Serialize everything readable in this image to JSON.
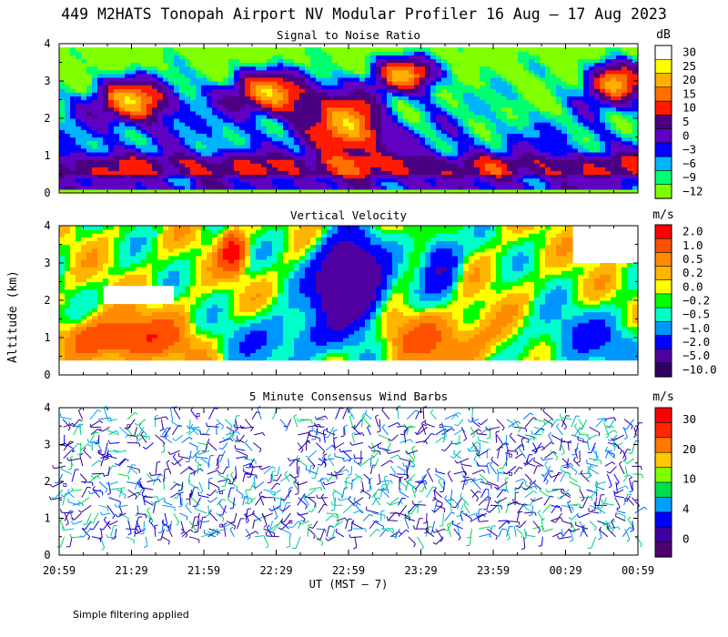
{
  "title": "449 M2HATS Tonopah Airport NV Modular Profiler 16 Aug – 17 Aug 2023",
  "y_axis_label": "Altitude (km)",
  "x_axis_label": "UT  (MST – 7)",
  "footnote": "Simple filtering applied",
  "x_ticks": [
    "20:59",
    "21:29",
    "21:59",
    "22:29",
    "22:59",
    "23:29",
    "23:59",
    "00:29",
    "00:59"
  ],
  "y_ticks": [
    "0",
    "1",
    "2",
    "3",
    "4"
  ],
  "chart_data": [
    {
      "type": "heatmap",
      "title": "Signal to Noise Ratio",
      "unit": "dB",
      "ylim": [
        0,
        4
      ],
      "legend_labels": [
        "30",
        "25",
        "20",
        "15",
        "10",
        "5",
        "0",
        "−3",
        "−6",
        "−9",
        "−12"
      ],
      "legend_colors": [
        "#ffffff",
        "#ffff00",
        "#ffb000",
        "#ff7000",
        "#ff1a00",
        "#4a0080",
        "#6000c0",
        "#0000ff",
        "#00b4ff",
        "#00ff70",
        "#80ff00"
      ],
      "contour_colors": [
        "#80ff00",
        "#00ff70",
        "#00b4ff",
        "#0000ff",
        "#6000c0",
        "#4a0080",
        "#ff1a00",
        "#ff7000",
        "#ffb000",
        "#ffff00",
        "#ffffff"
      ]
    },
    {
      "type": "heatmap",
      "title": "Vertical Velocity",
      "unit": "m/s",
      "ylim": [
        0,
        4
      ],
      "legend_labels": [
        "2.0",
        "1.0",
        "0.5",
        "0.2",
        "0.0",
        "−0.2",
        "−0.5",
        "−1.0",
        "−2.0",
        "−5.0",
        "−10.0"
      ],
      "legend_colors": [
        "#ff0000",
        "#ff5000",
        "#ff8c00",
        "#ffb400",
        "#ffff00",
        "#00ff00",
        "#00ffc8",
        "#0096ff",
        "#0000ff",
        "#5000a0",
        "#300060"
      ],
      "contour_colors": [
        "#5000a0",
        "#0000ff",
        "#0096ff",
        "#00ffc8",
        "#00ff00",
        "#ffff00",
        "#ffb400",
        "#ff8c00",
        "#ff5000",
        "#ff0000"
      ]
    },
    {
      "type": "scatter",
      "title": "5 Minute Consensus Wind Barbs",
      "unit": "m/s",
      "ylim": [
        0,
        4
      ],
      "legend_labels": [
        "30",
        "20",
        "10",
        "4",
        "0"
      ],
      "legend_colors": [
        "#ff0000",
        "#ff2800",
        "#ff7800",
        "#ffc800",
        "#80ff00",
        "#00dc50",
        "#00a0ff",
        "#0000ff",
        "#4000a0",
        "#500070"
      ],
      "barb_colors": [
        "#3000a0",
        "#3000a0",
        "#3000a0",
        "#0000ff",
        "#0070ff",
        "#00a0ff",
        "#00c8a0",
        "#00dc50"
      ]
    }
  ]
}
